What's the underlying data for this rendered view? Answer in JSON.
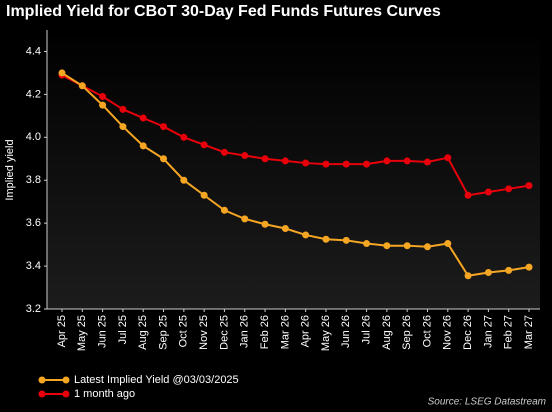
{
  "chart_data": {
    "type": "line",
    "title": "Implied Yield for CBoT 30-Day Fed Funds Futures Curves",
    "y_label": "Implied yield",
    "source": "Source: LSEG Datastream",
    "categories": [
      "Apr 25",
      "May 25",
      "Jun 25",
      "Jul 25",
      "Aug 25",
      "Sep 25",
      "Oct 25",
      "Nov 25",
      "Dec 25",
      "Jan 26",
      "Feb 26",
      "Mar 26",
      "Apr 26",
      "May 26",
      "Jun 26",
      "Jul 26",
      "Aug 26",
      "Sep 26",
      "Oct 26",
      "Nov 26",
      "Dec 26",
      "Jan 27",
      "Feb 27",
      "Mar 27"
    ],
    "series": [
      {
        "name": "Latest Implied Yield @03/03/2025",
        "color": "#f5a623",
        "values": [
          4.3,
          4.24,
          4.15,
          4.05,
          3.96,
          3.9,
          3.8,
          3.73,
          3.66,
          3.62,
          3.595,
          3.575,
          3.545,
          3.525,
          3.52,
          3.505,
          3.495,
          3.495,
          3.49,
          3.505,
          3.355,
          3.37,
          3.38,
          3.395
        ]
      },
      {
        "name": "1 month ago",
        "color": "#e8000b",
        "values": [
          4.29,
          4.24,
          4.19,
          4.13,
          4.09,
          4.05,
          4.0,
          3.965,
          3.93,
          3.915,
          3.9,
          3.89,
          3.88,
          3.875,
          3.875,
          3.875,
          3.89,
          3.89,
          3.885,
          3.905,
          3.73,
          3.745,
          3.76,
          3.775
        ]
      }
    ],
    "ylim": [
      3.2,
      4.5
    ],
    "yticks": [
      3.2,
      3.4,
      3.6,
      3.8,
      {
        "value": 4,
        "label": "4.0"
      },
      4.2,
      4.4
    ],
    "grid": false
  }
}
